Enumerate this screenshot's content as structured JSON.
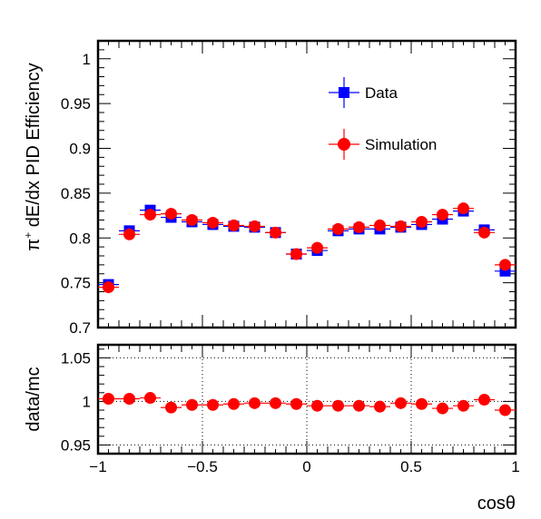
{
  "chart_data": [
    {
      "type": "scatter",
      "ylabel_prefix": "π",
      "ylabel_sup": "+",
      "ylabel_main": " dE/dx PID Efficiency",
      "xlim": [
        -1,
        1
      ],
      "ylim": [
        0.7,
        1.02
      ],
      "yticks": [
        0.7,
        0.75,
        0.8,
        0.85,
        0.9,
        0.95,
        1
      ],
      "ytick_labels": [
        "0.7",
        "0.75",
        "0.8",
        "0.85",
        "0.9",
        "0.95",
        "1"
      ],
      "grid": false,
      "legend_position": "top-right",
      "x": [
        -0.95,
        -0.85,
        -0.75,
        -0.65,
        -0.55,
        -0.45,
        -0.35,
        -0.25,
        -0.15,
        -0.05,
        0.05,
        0.15,
        0.25,
        0.35,
        0.45,
        0.55,
        0.65,
        0.75,
        0.85,
        0.95
      ],
      "x_err": 0.05,
      "series": [
        {
          "name": "Data",
          "marker": "square",
          "color": "#0000ff",
          "values": [
            0.748,
            0.808,
            0.831,
            0.823,
            0.818,
            0.815,
            0.813,
            0.812,
            0.806,
            0.782,
            0.786,
            0.808,
            0.81,
            0.81,
            0.812,
            0.815,
            0.821,
            0.83,
            0.809,
            0.763
          ]
        },
        {
          "name": "Simulation",
          "marker": "circle",
          "color": "#ff0000",
          "values": [
            0.745,
            0.804,
            0.826,
            0.827,
            0.82,
            0.817,
            0.814,
            0.813,
            0.806,
            0.782,
            0.789,
            0.81,
            0.812,
            0.814,
            0.813,
            0.818,
            0.826,
            0.833,
            0.806,
            0.77
          ]
        }
      ]
    },
    {
      "type": "scatter",
      "xlabel": "cosθ",
      "ylabel": "data/mc",
      "xlim": [
        -1,
        1
      ],
      "ylim": [
        0.94,
        1.065
      ],
      "xticks": [
        -1,
        -0.5,
        0,
        0.5,
        1
      ],
      "xtick_labels": [
        "−1",
        "−0.5",
        "0",
        "0.5",
        "1"
      ],
      "yticks": [
        0.95,
        1,
        1.05
      ],
      "ytick_labels": [
        "0.95",
        "1",
        "1.05"
      ],
      "grid": true,
      "x": [
        -0.95,
        -0.85,
        -0.75,
        -0.65,
        -0.55,
        -0.45,
        -0.35,
        -0.25,
        -0.15,
        -0.05,
        0.05,
        0.15,
        0.25,
        0.35,
        0.45,
        0.55,
        0.65,
        0.75,
        0.85,
        0.95
      ],
      "x_err": 0.05,
      "series": [
        {
          "marker": "circle",
          "color": "#ff0000",
          "values": [
            1.003,
            1.003,
            1.004,
            0.993,
            0.996,
            0.996,
            0.997,
            0.998,
            0.998,
            0.997,
            0.995,
            0.995,
            0.995,
            0.994,
            0.998,
            0.997,
            0.992,
            0.995,
            1.002,
            0.99
          ]
        }
      ]
    }
  ]
}
